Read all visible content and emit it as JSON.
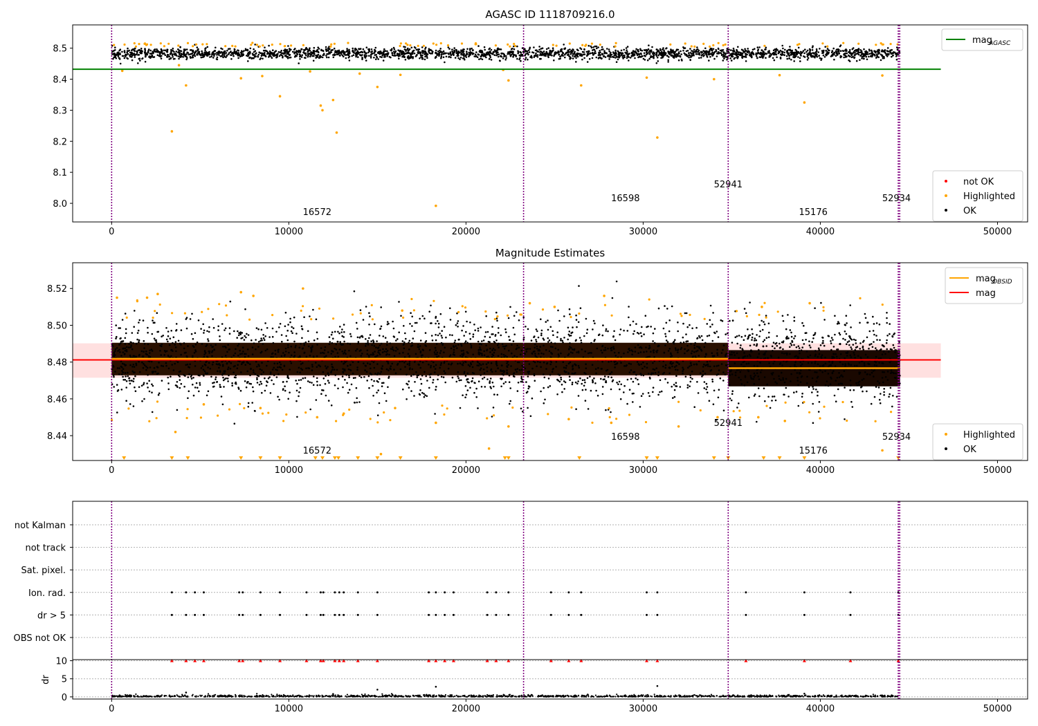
{
  "chart_data": [
    {
      "type": "scatter",
      "title": "AGASC ID 1118709216.0",
      "xlim": [
        -2200,
        51700
      ],
      "ylim": [
        7.94,
        8.575
      ],
      "x_ticks": [
        0,
        10000,
        20000,
        30000,
        40000,
        50000
      ],
      "y_ticks": [
        8.0,
        8.1,
        8.2,
        8.3,
        8.4,
        8.5
      ],
      "legend_top": {
        "position": "top-right",
        "entries": [
          {
            "label": "mag",
            "sub": "AGASC",
            "color": "#008000"
          }
        ]
      },
      "legend_bottom": {
        "position": "bottom-right",
        "entries": [
          {
            "label": "not OK",
            "color": "#ff0000"
          },
          {
            "label": "Highlighted",
            "color": "#ffa500"
          },
          {
            "label": "OK",
            "color": "#000000"
          }
        ]
      },
      "reference_line": {
        "name": "mag_AGASC",
        "y": 8.432,
        "x": [
          -2200,
          46800
        ],
        "color": "#008000"
      },
      "ok_band": {
        "x_start": 0,
        "x_end": 44500,
        "y_low": 8.463,
        "y_high": 8.502
      },
      "highlighted_points": [
        [
          3400,
          8.232
        ],
        [
          4200,
          8.38
        ],
        [
          9500,
          8.345
        ],
        [
          11800,
          8.315
        ],
        [
          11900,
          8.3
        ],
        [
          12500,
          8.333
        ],
        [
          12700,
          8.228
        ],
        [
          15000,
          8.375
        ],
        [
          26500,
          8.38
        ],
        [
          30200,
          8.405
        ],
        [
          30800,
          8.212
        ],
        [
          34000,
          8.4
        ],
        [
          39100,
          8.325
        ],
        [
          18300,
          7.992
        ],
        [
          7300,
          8.403
        ],
        [
          8500,
          8.41
        ],
        [
          11200,
          8.425
        ],
        [
          14000,
          8.418
        ],
        [
          16300,
          8.414
        ],
        [
          22400,
          8.396
        ],
        [
          37700,
          8.413
        ],
        [
          43500,
          8.412
        ],
        [
          600,
          8.427
        ],
        [
          3800,
          8.445
        ],
        [
          22100,
          8.43
        ]
      ]
    },
    {
      "type": "scatter",
      "title": "Magnitude Estimates",
      "xlim": [
        -2200,
        51700
      ],
      "ylim": [
        8.4265,
        8.534
      ],
      "x_ticks": [
        0,
        10000,
        20000,
        30000,
        40000,
        50000
      ],
      "y_ticks": [
        8.44,
        8.46,
        8.48,
        8.5,
        8.52
      ],
      "y_tick_labels": [
        "8.44",
        "8.46",
        "8.48",
        "8.50",
        "8.52"
      ],
      "legend_top": {
        "position": "top-right",
        "entries": [
          {
            "label": "mag",
            "sub": "OBSID",
            "color": "#ffa500"
          },
          {
            "label": "mag",
            "sub": "",
            "color": "#ff0000"
          }
        ]
      },
      "legend_bottom": {
        "position": "bottom-right",
        "entries": [
          {
            "label": "Highlighted",
            "color": "#ffa500"
          },
          {
            "label": "OK",
            "color": "#000000"
          }
        ]
      },
      "mag_line": {
        "y": 8.4812,
        "x": [
          -2200,
          46800
        ],
        "band": [
          8.4715,
          8.4902
        ],
        "color": "#ff0000"
      },
      "obsid_mag": [
        {
          "x": [
            0,
            34800
          ],
          "y": 8.4818
        },
        {
          "x": [
            34800,
            44500
          ],
          "y": 8.4767
        }
      ],
      "ok_band": {
        "x_start": 0,
        "x_end": 44500,
        "y_low": 8.458,
        "y_high": 8.505
      },
      "highlighted_points": [
        [
          300,
          8.515
        ],
        [
          2000,
          8.515
        ],
        [
          2600,
          8.517
        ],
        [
          7300,
          8.518
        ],
        [
          8000,
          8.516
        ],
        [
          10800,
          8.52
        ],
        [
          16400,
          8.508
        ],
        [
          23600,
          8.512
        ],
        [
          25000,
          8.51
        ],
        [
          27800,
          8.516
        ],
        [
          36700,
          8.51
        ],
        [
          39400,
          8.512
        ],
        [
          3600,
          8.442
        ],
        [
          5200,
          8.457
        ],
        [
          8400,
          8.455
        ],
        [
          11600,
          8.45
        ],
        [
          13100,
          8.452
        ],
        [
          16000,
          8.455
        ],
        [
          18300,
          8.447
        ],
        [
          21300,
          8.433
        ],
        [
          22400,
          8.445
        ],
        [
          25800,
          8.449
        ],
        [
          28200,
          8.447
        ],
        [
          32000,
          8.445
        ],
        [
          34200,
          8.45
        ],
        [
          36500,
          8.45
        ],
        [
          38000,
          8.448
        ],
        [
          43500,
          8.432
        ],
        [
          15200,
          8.43
        ]
      ],
      "clipped_markers_x": [
        700,
        3400,
        4300,
        7300,
        8400,
        9500,
        11500,
        11900,
        12600,
        12800,
        13900,
        15000,
        16300,
        18300,
        22200,
        22400,
        26400,
        30200,
        30800,
        34000,
        34800,
        36800,
        37700,
        39100,
        44400
      ]
    },
    {
      "type": "scatter",
      "xlim": [
        -2200,
        51700
      ],
      "x_ticks": [
        0,
        10000,
        20000,
        30000,
        40000,
        50000
      ],
      "flag_rows": [
        "not Kalman",
        "not track",
        "Sat. pixel.",
        "Ion. rad.",
        "dr > 5",
        "OBS not OK"
      ],
      "flag_points": {
        "Ion. rad.": [
          3400,
          4200,
          4700,
          5200,
          7200,
          7400,
          8400,
          9500,
          11000,
          11800,
          11950,
          12600,
          12850,
          13100,
          13900,
          15000,
          17900,
          18300,
          18800,
          19300,
          21200,
          21700,
          22400,
          24800,
          25800,
          26500,
          30200,
          30800,
          35800,
          39100,
          41700,
          44400
        ],
        "dr > 5": [
          3400,
          4200,
          4700,
          5200,
          7200,
          7400,
          8400,
          9500,
          11000,
          11800,
          11950,
          12600,
          12850,
          13100,
          13900,
          15000,
          17900,
          18300,
          18800,
          19300,
          21200,
          21700,
          22400,
          24800,
          25800,
          26500,
          30200,
          30800,
          35800,
          39100,
          41700,
          44400
        ]
      },
      "dr": {
        "ylabel": "dr",
        "ylim": [
          -0.6,
          10.3
        ],
        "y_ticks": [
          0,
          5,
          10
        ],
        "clipped_at": 10,
        "clipped_x": [
          3400,
          4200,
          4700,
          5200,
          7200,
          7400,
          8400,
          9500,
          11000,
          11800,
          11950,
          12600,
          12850,
          13100,
          13900,
          15000,
          17900,
          18300,
          18800,
          19300,
          21200,
          21700,
          22400,
          24800,
          25800,
          26500,
          30200,
          30800,
          35800,
          39100,
          41700,
          44400
        ],
        "outliers": [
          [
            4200,
            1.2
          ],
          [
            15000,
            2.0
          ],
          [
            18300,
            2.8
          ],
          [
            30800,
            3.0
          ],
          [
            12500,
            0.8
          ],
          [
            39100,
            0.9
          ]
        ]
      }
    }
  ],
  "boundaries": [
    0,
    23250,
    34800,
    44400,
    44480
  ],
  "obsid_labels": [
    {
      "text": "16572",
      "x": 11600,
      "level": 0
    },
    {
      "text": "16598",
      "x": 29000,
      "level": 1
    },
    {
      "text": "52941",
      "x": 34800,
      "level": 2
    },
    {
      "text": "15176",
      "x": 39600,
      "level": 0
    },
    {
      "text": "52934",
      "x": 44300,
      "level": 1
    }
  ],
  "colors": {
    "ok": "#000000",
    "highlighted": "#ffa500",
    "not_ok": "#ff0000",
    "agasc": "#008000",
    "boundary": "#800080",
    "mag": "#ff0000",
    "obsid": "#ffa500"
  }
}
